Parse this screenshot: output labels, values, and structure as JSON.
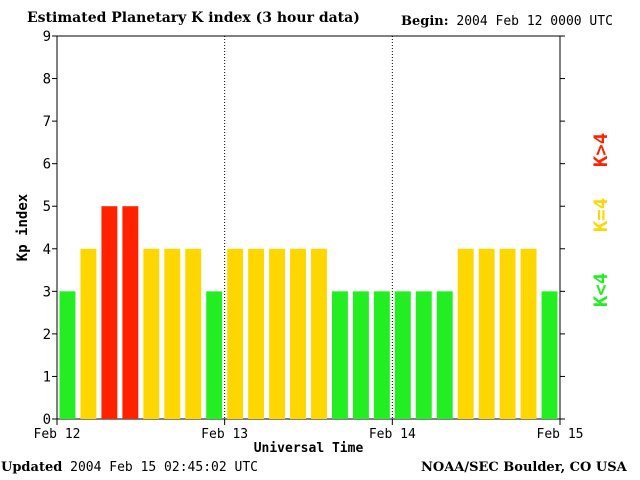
{
  "title": "Estimated Planetary K index (3 hour data)",
  "begin_label": "Begin:",
  "begin_value": "2004 Feb 12 0000 UTC",
  "updated_label": "Updated",
  "updated_value": "2004 Feb 15 02:45:02 UTC",
  "source": "NOAA/SEC Boulder, CO USA",
  "legend": {
    "high": "K>4",
    "mid": "K=4",
    "low": "K<4"
  },
  "colors": {
    "low": "#22ee22",
    "mid": "#ffd700",
    "high": "#ff2200"
  },
  "chart_data": {
    "type": "bar",
    "title": "Estimated Planetary K index (3 hour data)",
    "xlabel": "Universal Time",
    "ylabel": "Kp index",
    "ylim": [
      0,
      9
    ],
    "yticks": [
      0,
      1,
      2,
      3,
      4,
      5,
      6,
      7,
      8,
      9
    ],
    "xticks": [
      "Feb 12",
      "Feb 13",
      "Feb 14",
      "Feb 15"
    ],
    "grid": false,
    "day_separators": true,
    "series": [
      {
        "values": [
          3,
          4,
          5,
          5,
          4,
          4,
          4,
          3,
          4,
          4,
          4,
          4,
          4,
          3,
          3,
          3,
          3,
          3,
          3,
          4,
          4,
          4,
          4,
          3
        ]
      }
    ]
  }
}
